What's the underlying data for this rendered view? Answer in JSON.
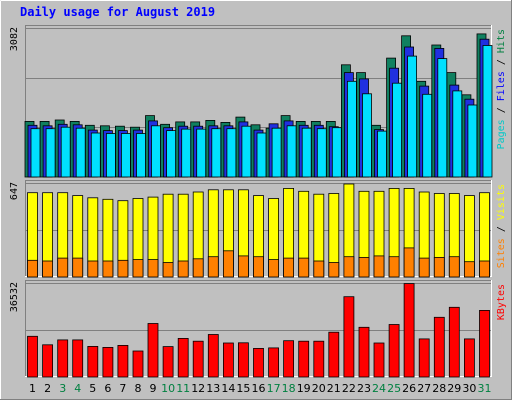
{
  "chart_data": {
    "type": "bar",
    "title": "Daily usage for August 2019",
    "categories": [
      "1",
      "2",
      "3",
      "4",
      "5",
      "6",
      "7",
      "8",
      "9",
      "10",
      "11",
      "12",
      "13",
      "14",
      "15",
      "16",
      "17",
      "18",
      "19",
      "20",
      "21",
      "22",
      "23",
      "24",
      "25",
      "26",
      "27",
      "28",
      "29",
      "30",
      "31"
    ],
    "weekend_days": [
      "3",
      "4",
      "10",
      "11",
      "17",
      "18",
      "24",
      "25",
      "31"
    ],
    "panels": [
      {
        "name": "hits-files-pages",
        "ymax_label": "3082",
        "ymax": 3082,
        "legend": [
          {
            "name": "Pages",
            "color": "#00c8c8"
          },
          {
            "name": "Files",
            "color": "#0000ff"
          },
          {
            "name": "Hits",
            "color": "#008040"
          }
        ],
        "series": [
          {
            "name": "Hits",
            "color": "#108060",
            "values": [
              1150,
              1150,
              1180,
              1150,
              1070,
              1060,
              1050,
              1030,
              1270,
              1090,
              1140,
              1140,
              1170,
              1130,
              1240,
              1080,
              1010,
              1270,
              1150,
              1150,
              1150,
              2320,
              2160,
              1070,
              2460,
              2920,
              1980,
              2730,
              2160,
              1700,
              2960
            ]
          },
          {
            "name": "Files",
            "color": "#2030e0",
            "values": [
              1070,
              1060,
              1090,
              1080,
              970,
              960,
              960,
              970,
              1160,
              1020,
              1050,
              1050,
              1060,
              1060,
              1140,
              970,
              1100,
              1160,
              1070,
              1070,
              1040,
              2160,
              2030,
              980,
              2250,
              2690,
              1880,
              2660,
              1900,
              1610,
              2850
            ]
          },
          {
            "name": "Pages",
            "color": "#00e0ff",
            "values": [
              1000,
              1000,
              1030,
              1010,
              910,
              900,
              900,
              900,
              1060,
              960,
              990,
              990,
              1000,
              1000,
              1050,
              910,
              1010,
              1060,
              1010,
              1000,
              1020,
              1980,
              1720,
              950,
              1940,
              2500,
              1710,
              2450,
              1780,
              1490,
              2720
            ]
          }
        ]
      },
      {
        "name": "visits-sites",
        "ymax_label": "647",
        "ymax": 647,
        "legend": [
          {
            "name": "Sites",
            "color": "#ff8000"
          },
          {
            "name": "Visits",
            "color": "#ffff00"
          }
        ],
        "series": [
          {
            "name": "Visits",
            "color": "#ffff00",
            "values": [
              580,
              580,
              580,
              560,
              545,
              535,
              525,
              540,
              550,
              570,
              570,
              585,
              600,
              600,
              600,
              560,
              540,
              610,
              590,
              570,
              575,
              640,
              590,
              590,
              610,
              610,
              585,
              575,
              575,
              560,
              580
            ]
          },
          {
            "name": "Sites",
            "color": "#ff8000",
            "values": [
              115,
              110,
              130,
              130,
              110,
              110,
              115,
              120,
              120,
              100,
              110,
              125,
              140,
              180,
              145,
              140,
              120,
              130,
              130,
              110,
              100,
              140,
              135,
              145,
              140,
              200,
              130,
              135,
              140,
              105,
              110
            ]
          }
        ]
      },
      {
        "name": "kbytes",
        "ymax_label": "36532",
        "ymax": 36532,
        "legend": [
          {
            "name": "KBytes",
            "color": "#ff0000"
          }
        ],
        "series": [
          {
            "name": "KBytes",
            "color": "#ff0000",
            "values": [
              15800,
              12500,
              14400,
              14400,
              11900,
              11500,
              12300,
              10100,
              20800,
              11800,
              15000,
              13900,
              16500,
              13200,
              13300,
              11100,
              11300,
              14100,
              13900,
              13900,
              17400,
              31200,
              19300,
              13200,
              20400,
              36300,
              14800,
              23200,
              27100,
              14800,
              25900
            ]
          }
        ]
      }
    ],
    "xlabel": "",
    "ylabel": "",
    "grid": true,
    "legend_placement": "right-vertical"
  }
}
